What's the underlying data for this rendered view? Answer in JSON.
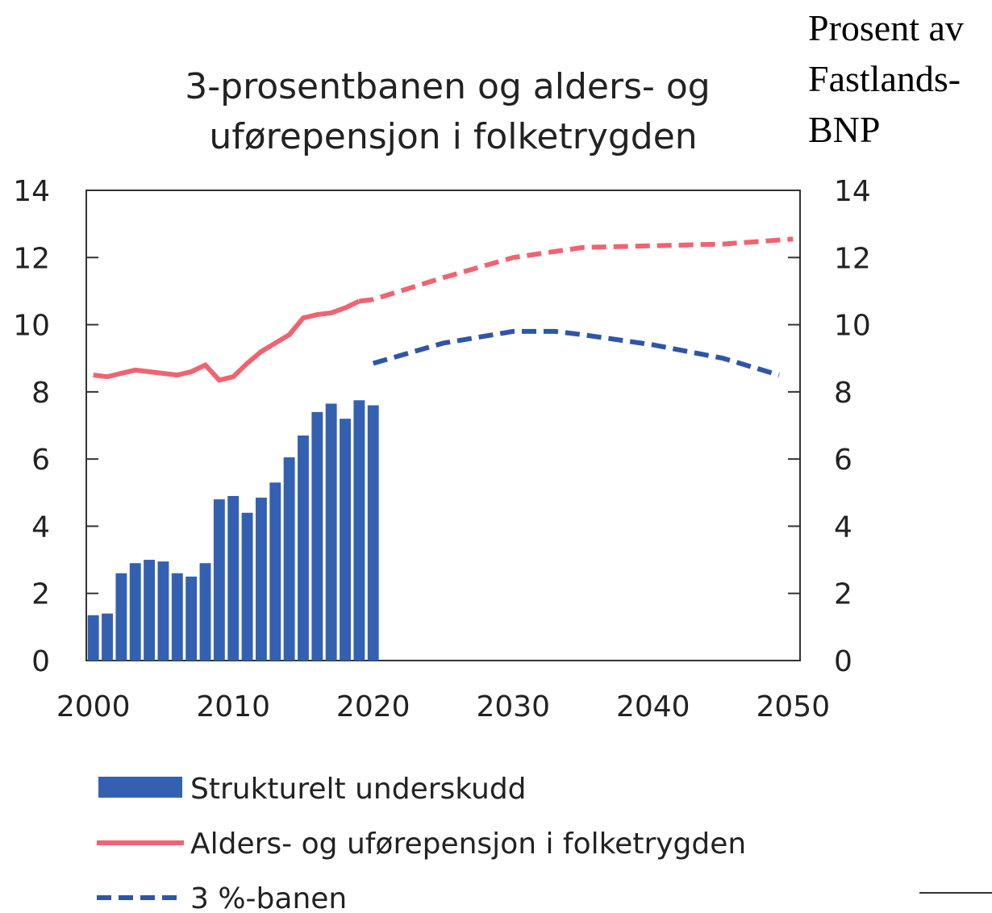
{
  "chart_data": {
    "type": "bar",
    "title_lines": [
      "3-prosentbanen og alders- og",
      "uførepensjon i folketrygden"
    ],
    "y2_label_lines": [
      "Prosent av",
      "Fastlands-",
      "BNP"
    ],
    "xlim": [
      1999.5,
      2050.5
    ],
    "xticks": [
      2000,
      2010,
      2020,
      2030,
      2040,
      2050
    ],
    "ylim": [
      0,
      14
    ],
    "yticks": [
      0,
      2,
      4,
      6,
      8,
      10,
      12,
      14
    ],
    "y2lim": [
      0,
      14
    ],
    "y2ticks": [
      0,
      2,
      4,
      6,
      8,
      10,
      12,
      14
    ],
    "grid": false,
    "series": [
      {
        "name": "Strukturelt underskudd",
        "type": "bar",
        "color": "#3460b1",
        "x": [
          2000,
          2001,
          2002,
          2003,
          2004,
          2005,
          2006,
          2007,
          2008,
          2009,
          2010,
          2011,
          2012,
          2013,
          2014,
          2015,
          2016,
          2017,
          2018,
          2019,
          2020
        ],
        "values": [
          1.35,
          1.4,
          2.6,
          2.9,
          3.0,
          2.95,
          2.6,
          2.5,
          2.9,
          4.8,
          4.9,
          4.4,
          4.85,
          5.3,
          6.05,
          6.7,
          7.4,
          7.65,
          7.2,
          7.75,
          7.6
        ]
      },
      {
        "name": "Alders- og uførepensjon i folketrygden",
        "type": "line",
        "style": "solid",
        "color": "#ef6470",
        "x": [
          2000,
          2001,
          2002,
          2003,
          2004,
          2005,
          2006,
          2007,
          2008,
          2009,
          2010,
          2011,
          2012,
          2013,
          2014,
          2015,
          2016,
          2017,
          2018,
          2019
        ],
        "values": [
          8.5,
          8.45,
          8.55,
          8.65,
          8.6,
          8.55,
          8.5,
          8.6,
          8.8,
          8.35,
          8.45,
          8.85,
          9.2,
          9.45,
          9.7,
          10.2,
          10.3,
          10.35,
          10.5,
          10.7
        ]
      },
      {
        "type": "line",
        "style": "dashed",
        "color": "#ef6470",
        "x": [
          2019,
          2020,
          2025,
          2030,
          2035,
          2040,
          2045,
          2050
        ],
        "values": [
          10.7,
          10.75,
          11.4,
          12.0,
          12.3,
          12.35,
          12.4,
          12.55
        ]
      },
      {
        "name": "3 %-banen",
        "type": "line",
        "style": "dashed",
        "color": "#2f55a8",
        "x": [
          2020,
          2025,
          2030,
          2033,
          2035,
          2040,
          2045,
          2049
        ],
        "values": [
          8.85,
          9.45,
          9.8,
          9.8,
          9.7,
          9.4,
          9.0,
          8.5
        ]
      }
    ]
  }
}
